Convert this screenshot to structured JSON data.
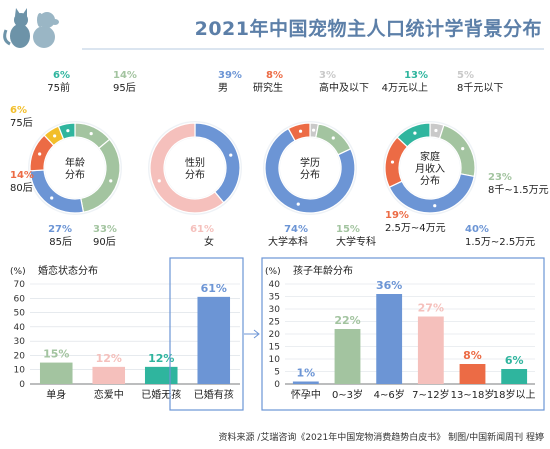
{
  "title": "2021年中国宠物主人口统计学背景分布",
  "source": "资料来源 /艾瑞咨询《2021年中国宠物消费趋势白皮书》 制图/中国新闻周刊 程婷",
  "colors": {
    "blue": "#6c95d5",
    "green": "#a3c4a0",
    "orange": "#ec6b45",
    "yellow": "#f2be2a",
    "teal": "#2fb59e",
    "pink": "#f0a6a6",
    "lightpink": "#f5c0bc",
    "gray": "#c9c9c9",
    "title": "#5c7fa8"
  },
  "chart_data": [
    {
      "type": "pie",
      "title": "年龄分布",
      "slices": [
        {
          "label": "95后",
          "value": 14,
          "color": "#a3c4a0"
        },
        {
          "label": "90后",
          "value": 33,
          "color": "#a3c4a0"
        },
        {
          "label": "85后",
          "value": 27,
          "color": "#6c95d5"
        },
        {
          "label": "80后",
          "value": 14,
          "color": "#ec6b45"
        },
        {
          "label": "75后",
          "value": 6,
          "color": "#f2be2a"
        },
        {
          "label": "75前",
          "value": 6,
          "color": "#2fb59e"
        }
      ]
    },
    {
      "type": "pie",
      "title": "性别分布",
      "slices": [
        {
          "label": "男",
          "value": 39,
          "color": "#6c95d5"
        },
        {
          "label": "女",
          "value": 61,
          "color": "#f5c0bc"
        }
      ]
    },
    {
      "type": "pie",
      "title": "学历分布",
      "slices": [
        {
          "label": "高中及以下",
          "value": 3,
          "color": "#c9c9c9"
        },
        {
          "label": "大学专科",
          "value": 15,
          "color": "#a3c4a0"
        },
        {
          "label": "大学本科",
          "value": 74,
          "color": "#6c95d5"
        },
        {
          "label": "研究生",
          "value": 8,
          "color": "#ec6b45"
        }
      ]
    },
    {
      "type": "pie",
      "title": "家庭月收入分布",
      "slices": [
        {
          "label": "8千元以下",
          "value": 5,
          "color": "#c9c9c9"
        },
        {
          "label": "8千~1.5万元",
          "value": 23,
          "color": "#a3c4a0"
        },
        {
          "label": "1.5万~2.5万元",
          "value": 40,
          "color": "#6c95d5"
        },
        {
          "label": "2.5万~4万元",
          "value": 19,
          "color": "#ec6b45"
        },
        {
          "label": "4万元以上",
          "value": 13,
          "color": "#2fb59e"
        }
      ]
    },
    {
      "type": "bar",
      "title": "婚恋状态分布",
      "ylabel": "(%)",
      "ylim": [
        0,
        70
      ],
      "yticks": [
        0,
        10,
        20,
        30,
        40,
        50,
        60,
        70
      ],
      "categories": [
        "单身",
        "恋爱中",
        "已婚无孩",
        "已婚有孩"
      ],
      "values": [
        15,
        12,
        12,
        61
      ],
      "colors": [
        "#a3c4a0",
        "#f5c0bc",
        "#2fb59e",
        "#6c95d5"
      ]
    },
    {
      "type": "bar",
      "title": "孩子年龄分布",
      "ylabel": "(%)",
      "ylim": [
        0,
        40
      ],
      "yticks": [
        0,
        5,
        10,
        15,
        20,
        25,
        30,
        35,
        40
      ],
      "categories": [
        "怀孕中",
        "0~3岁",
        "4~6岁",
        "7~12岁",
        "13~18岁",
        "18岁以上"
      ],
      "values": [
        1,
        22,
        36,
        27,
        8,
        6
      ],
      "colors": [
        "#6c95d5",
        "#a3c4a0",
        "#6c95d5",
        "#f5c0bc",
        "#ec6b45",
        "#2fb59e"
      ]
    }
  ]
}
